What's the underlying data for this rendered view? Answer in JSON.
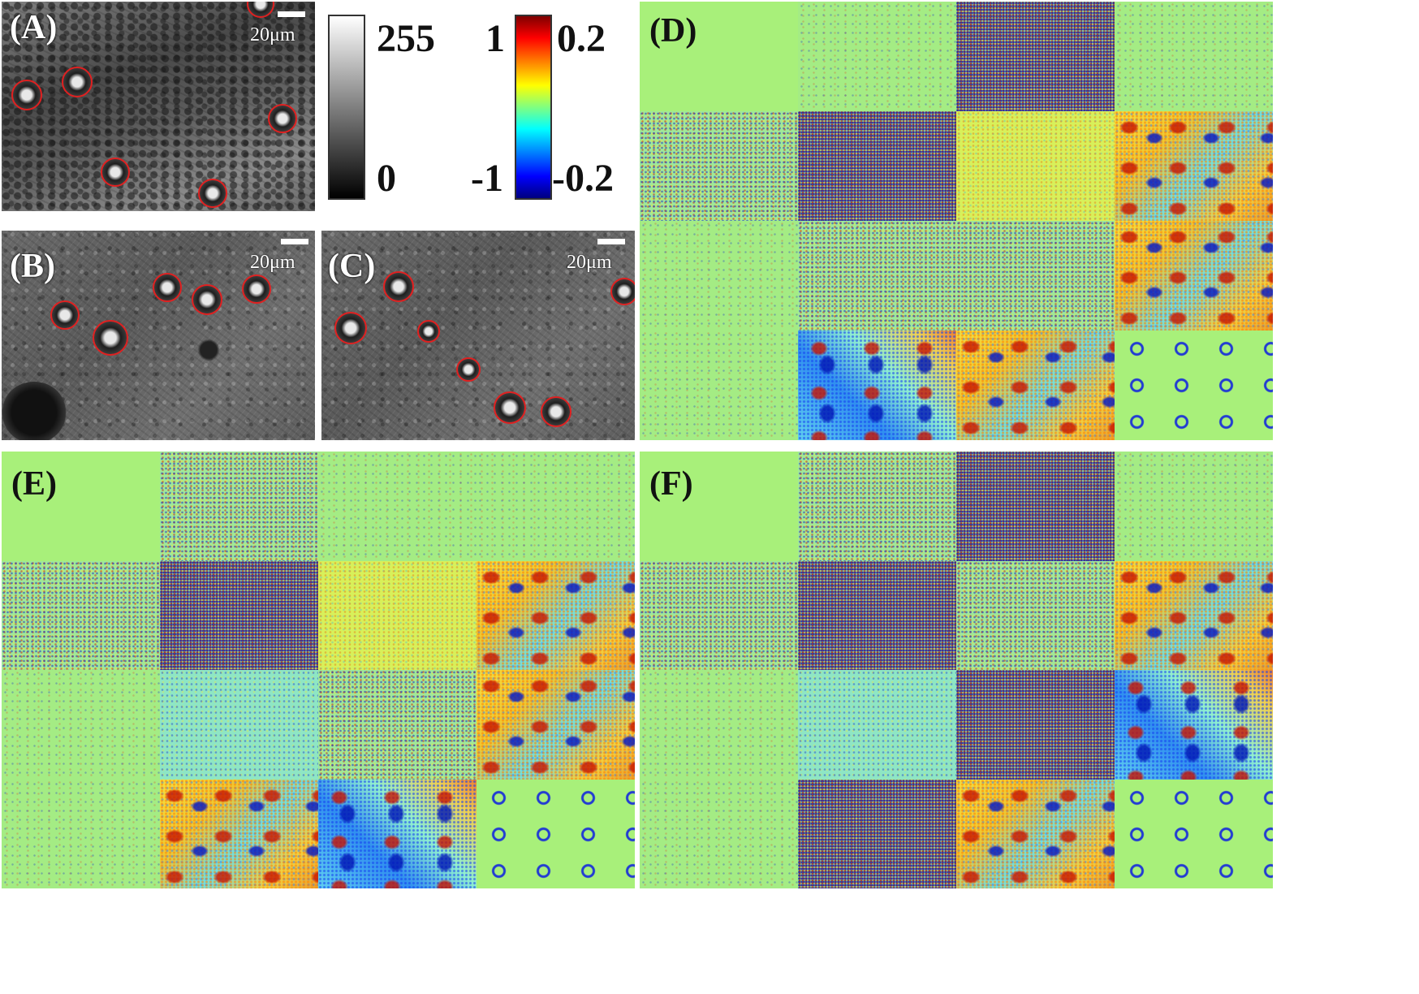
{
  "figure": {
    "panels": {
      "A": {
        "label": "(A)",
        "scale": "20μm"
      },
      "B": {
        "label": "(B)",
        "scale": "20μm"
      },
      "C": {
        "label": "(C)",
        "scale": "20μm"
      },
      "D": {
        "label": "(D)"
      },
      "E": {
        "label": "(E)"
      },
      "F": {
        "label": "(F)"
      }
    },
    "colorbars": {
      "gray": {
        "top": "255",
        "bottom": "0"
      },
      "jet": {
        "top_left": "1",
        "top_right": "0.2",
        "bottom_left": "-1",
        "bottom_right": "-0.2"
      }
    },
    "grid_patterns": {
      "D": [
        "flat",
        "low",
        "noisy",
        "low",
        "mid",
        "noisy",
        "yellow",
        "hot",
        "low",
        "mid",
        "mid",
        "hot",
        "low",
        "bluehot",
        "hot",
        "rings"
      ],
      "E": [
        "flat",
        "mid",
        "low",
        "low",
        "mid",
        "noisy",
        "yellow",
        "hot",
        "low",
        "cyan",
        "mid",
        "hot",
        "low",
        "hot",
        "bluehot",
        "rings"
      ],
      "F": [
        "flat",
        "mid",
        "noisy",
        "low",
        "mid",
        "noisy",
        "mid",
        "hot",
        "low",
        "cyan",
        "noisy",
        "bluehot",
        "low",
        "noisy",
        "hot",
        "rings"
      ]
    },
    "colors": {
      "circle": "#e02020",
      "background_green": "#a8f07a"
    }
  }
}
